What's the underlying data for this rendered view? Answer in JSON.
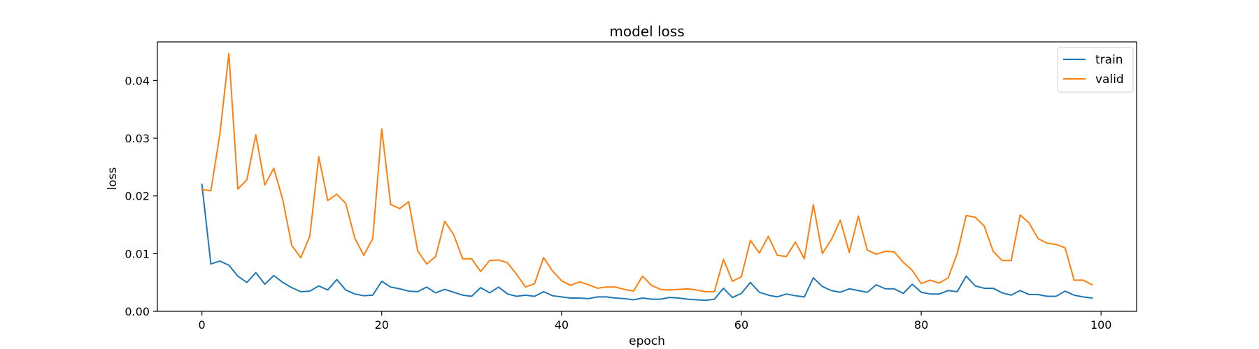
{
  "chart_data": {
    "type": "line",
    "title": "model loss",
    "xlabel": "epoch",
    "ylabel": "loss",
    "xlim": [
      -4.95,
      103.95
    ],
    "ylim": [
      0,
      0.0467
    ],
    "xticks": [
      0,
      20,
      40,
      60,
      80,
      100
    ],
    "xtick_labels": [
      "0",
      "20",
      "40",
      "60",
      "80",
      "100"
    ],
    "yticks": [
      0,
      0.01,
      0.02,
      0.03,
      0.04
    ],
    "ytick_labels": [
      "0.00",
      "0.01",
      "0.02",
      "0.03",
      "0.04"
    ],
    "grid": false,
    "legend_position": "top-right",
    "x": [
      0,
      1,
      2,
      3,
      4,
      5,
      6,
      7,
      8,
      9,
      10,
      11,
      12,
      13,
      14,
      15,
      16,
      17,
      18,
      19,
      20,
      21,
      22,
      23,
      24,
      25,
      26,
      27,
      28,
      29,
      30,
      31,
      32,
      33,
      34,
      35,
      36,
      37,
      38,
      39,
      40,
      41,
      42,
      43,
      44,
      45,
      46,
      47,
      48,
      49,
      50,
      51,
      52,
      53,
      54,
      55,
      56,
      57,
      58,
      59,
      60,
      61,
      62,
      63,
      64,
      65,
      66,
      67,
      68,
      69,
      70,
      71,
      72,
      73,
      74,
      75,
      76,
      77,
      78,
      79,
      80,
      81,
      82,
      83,
      84,
      85,
      86,
      87,
      88,
      89,
      90,
      91,
      92,
      93,
      94,
      95,
      96,
      97,
      98,
      99
    ],
    "series": [
      {
        "name": "train",
        "color": "#1f77b4",
        "values": [
          0.022,
          0.0082,
          0.0087,
          0.008,
          0.0061,
          0.005,
          0.0067,
          0.0047,
          0.0062,
          0.005,
          0.0041,
          0.0034,
          0.0035,
          0.0044,
          0.0037,
          0.0055,
          0.0037,
          0.003,
          0.0027,
          0.0028,
          0.0052,
          0.0042,
          0.0039,
          0.0035,
          0.0034,
          0.0042,
          0.0032,
          0.0038,
          0.0033,
          0.0028,
          0.0026,
          0.0041,
          0.0032,
          0.0042,
          0.003,
          0.0026,
          0.0028,
          0.0026,
          0.0034,
          0.0027,
          0.0025,
          0.0023,
          0.0023,
          0.0022,
          0.0025,
          0.0025,
          0.0023,
          0.0022,
          0.002,
          0.0023,
          0.0021,
          0.0021,
          0.0024,
          0.0023,
          0.0021,
          0.002,
          0.0019,
          0.0021,
          0.004,
          0.0024,
          0.0031,
          0.005,
          0.0033,
          0.0028,
          0.0025,
          0.003,
          0.0027,
          0.0025,
          0.0058,
          0.0043,
          0.0036,
          0.0033,
          0.0039,
          0.0036,
          0.0033,
          0.0046,
          0.0039,
          0.0039,
          0.0031,
          0.0047,
          0.0033,
          0.003,
          0.003,
          0.0036,
          0.0034,
          0.0061,
          0.0044,
          0.004,
          0.004,
          0.0032,
          0.0028,
          0.0036,
          0.0029,
          0.0029,
          0.0026,
          0.0026,
          0.0035,
          0.0028,
          0.0025,
          0.0023
        ]
      },
      {
        "name": "valid",
        "color": "#ff7f0e",
        "values": [
          0.0211,
          0.0209,
          0.0307,
          0.0447,
          0.0212,
          0.0228,
          0.0306,
          0.0219,
          0.0248,
          0.0193,
          0.0114,
          0.0093,
          0.013,
          0.0268,
          0.0192,
          0.0203,
          0.0187,
          0.0127,
          0.0097,
          0.0126,
          0.0316,
          0.0185,
          0.0178,
          0.019,
          0.0105,
          0.0082,
          0.0095,
          0.0156,
          0.0133,
          0.0091,
          0.0091,
          0.0069,
          0.0088,
          0.0089,
          0.0084,
          0.0064,
          0.0042,
          0.0048,
          0.0093,
          0.007,
          0.0053,
          0.0045,
          0.0051,
          0.0046,
          0.004,
          0.0042,
          0.0042,
          0.0038,
          0.0035,
          0.0061,
          0.0045,
          0.0038,
          0.0037,
          0.0038,
          0.0039,
          0.0037,
          0.0034,
          0.0034,
          0.009,
          0.0052,
          0.006,
          0.0123,
          0.0101,
          0.013,
          0.0097,
          0.0095,
          0.012,
          0.0091,
          0.0185,
          0.01,
          0.0124,
          0.0158,
          0.0102,
          0.0165,
          0.0106,
          0.0099,
          0.0104,
          0.0103,
          0.0085,
          0.0071,
          0.0048,
          0.0054,
          0.0049,
          0.0058,
          0.01,
          0.0166,
          0.0163,
          0.0148,
          0.0104,
          0.0088,
          0.0088,
          0.0167,
          0.0153,
          0.0126,
          0.0118,
          0.0116,
          0.011,
          0.0054,
          0.0054,
          0.0046
        ]
      }
    ]
  }
}
